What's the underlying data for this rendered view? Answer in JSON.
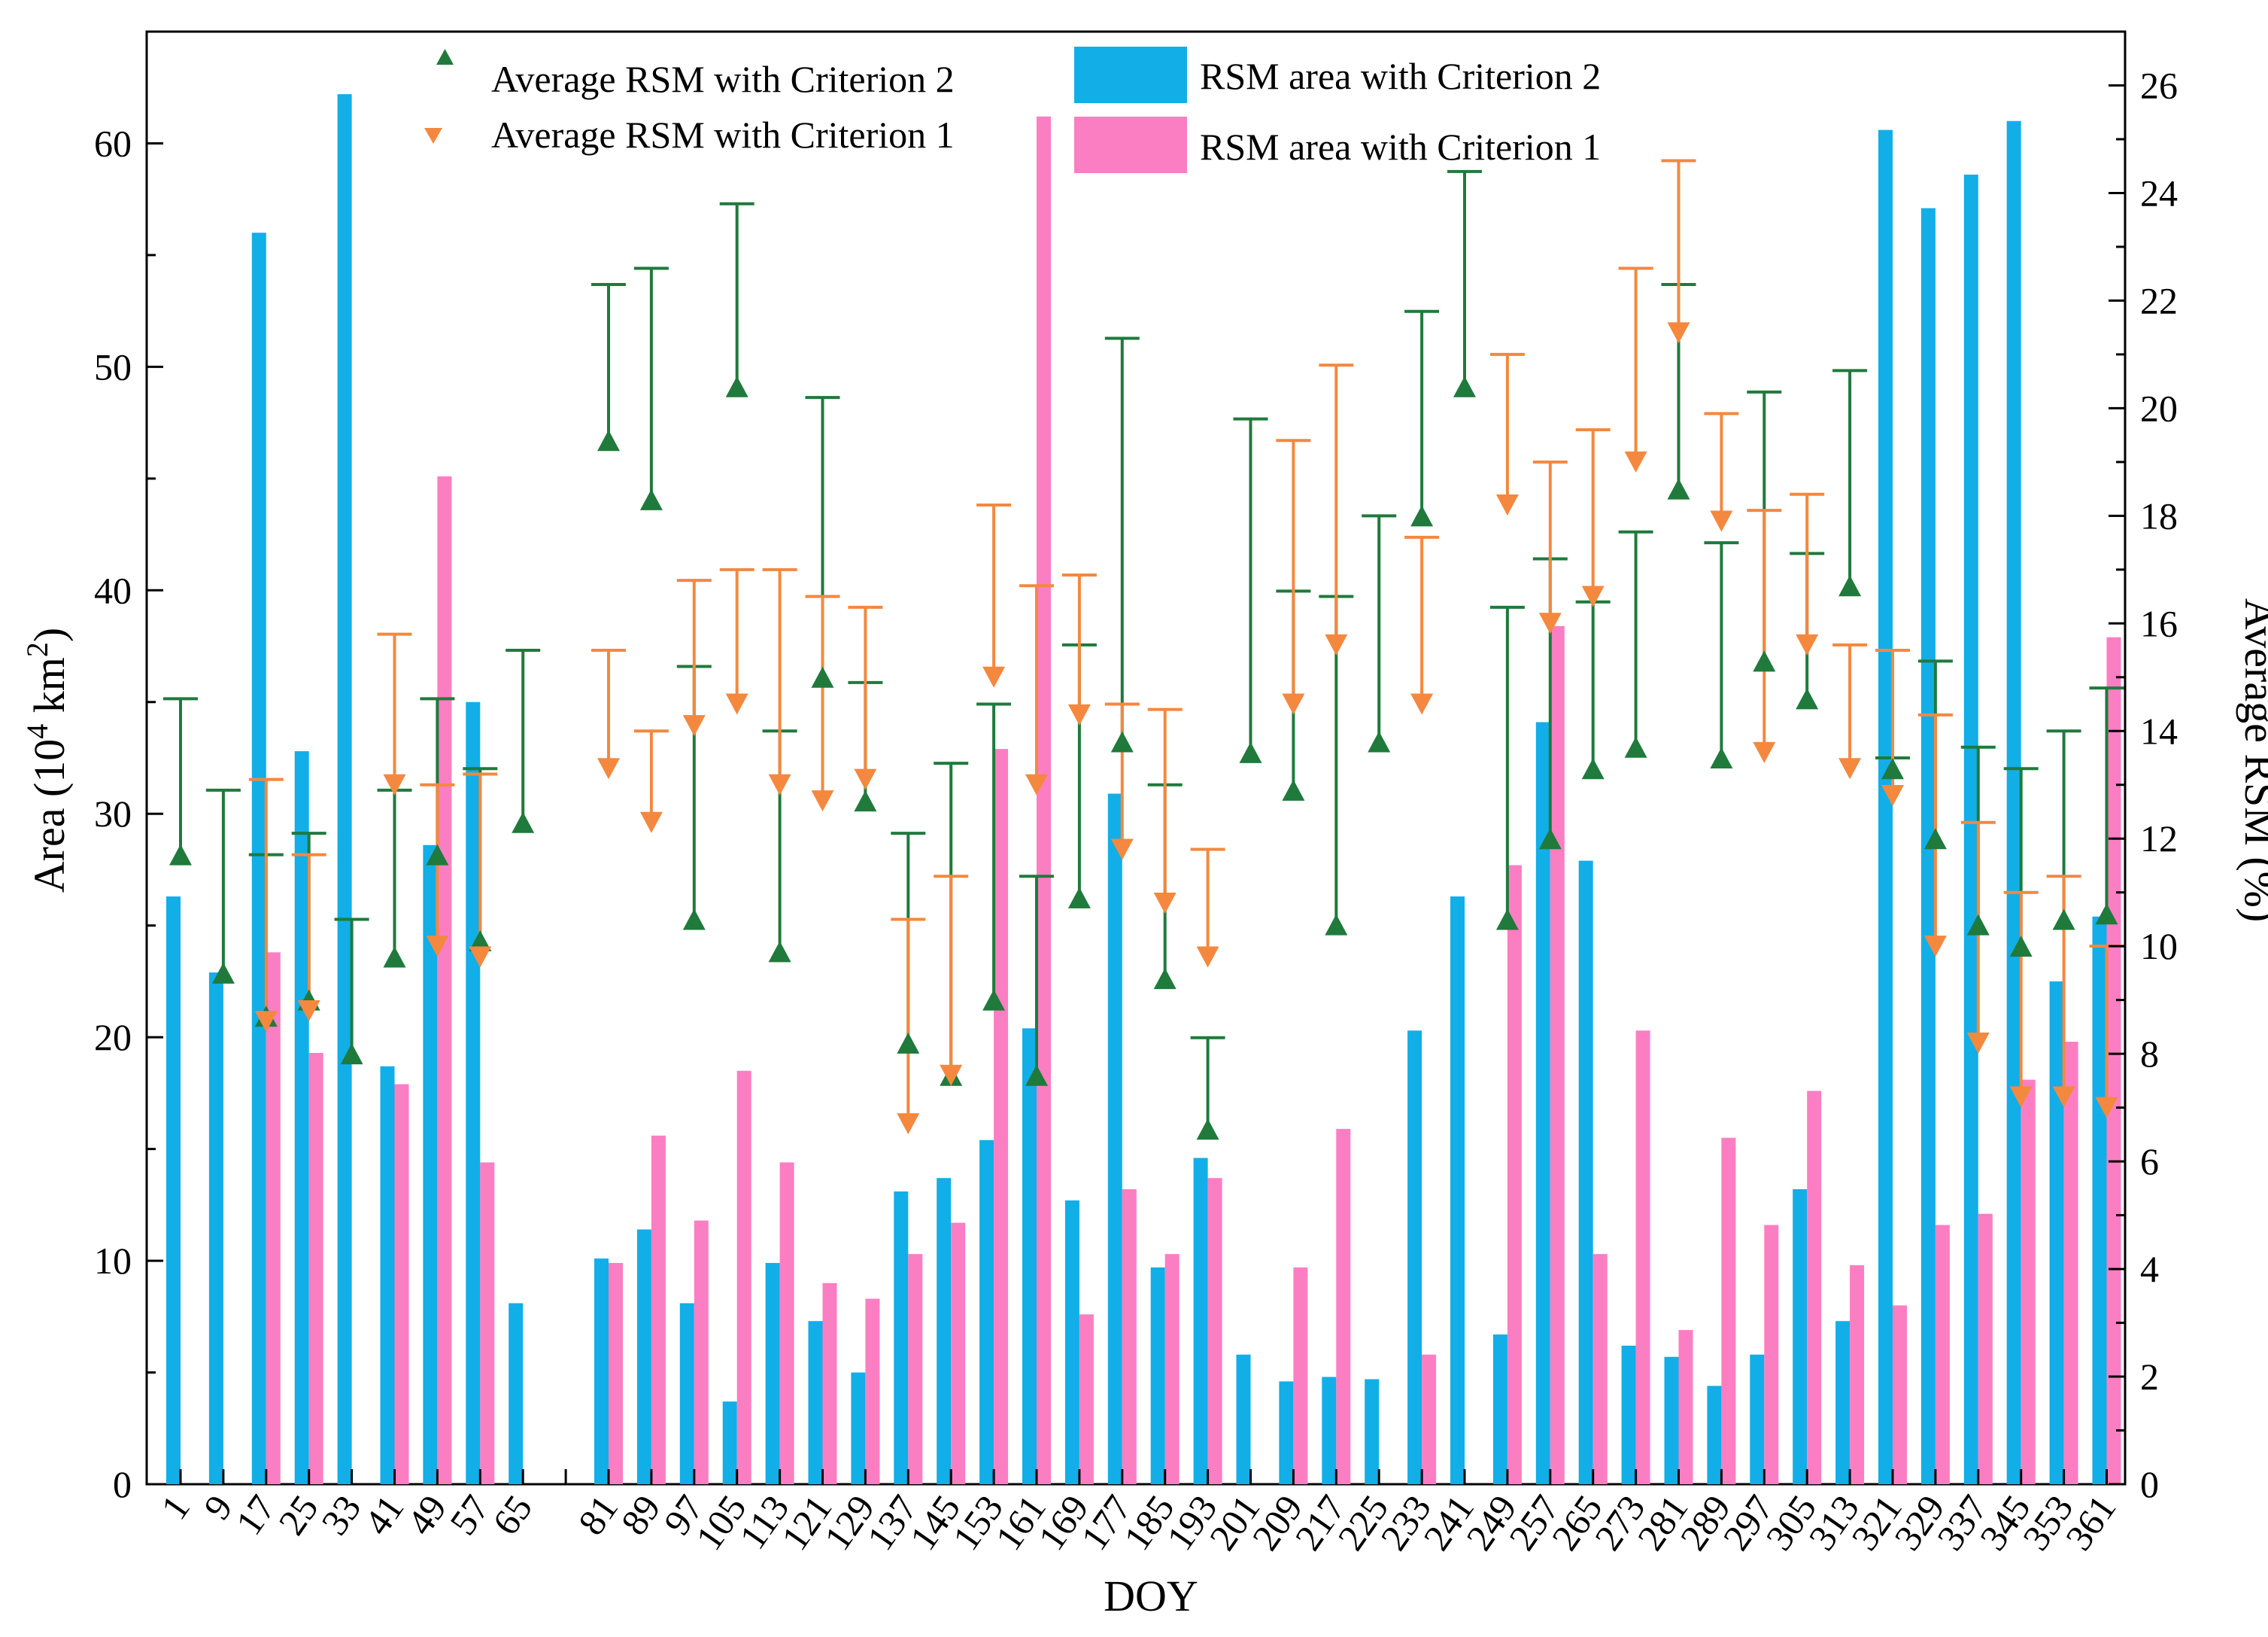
{
  "chart_data": {
    "type": "bar",
    "title": "",
    "xlabel": "DOY",
    "ylabel_left": "Area (10",
    "ylabel_left_sup": "4",
    "ylabel_left_unit": " km",
    "ylabel_left_sup2": "2",
    "ylabel_left_close": ")",
    "ylabel_right": "Average RSM (%)",
    "ylim_left": [
      0,
      65
    ],
    "ylim_right": [
      0,
      27
    ],
    "yticks_left": [
      0,
      10,
      20,
      30,
      40,
      50,
      60
    ],
    "yticks_right": [
      0,
      2,
      4,
      6,
      8,
      10,
      12,
      14,
      16,
      18,
      20,
      22,
      24,
      26
    ],
    "categories": [
      "1",
      "9",
      "17",
      "25",
      "33",
      "41",
      "49",
      "57",
      "65",
      "",
      "81",
      "89",
      "97",
      "105",
      "113",
      "121",
      "129",
      "137",
      "145",
      "153",
      "161",
      "169",
      "177",
      "185",
      "193",
      "201",
      "209",
      "217",
      "225",
      "233",
      "241",
      "249",
      "257",
      "265",
      "273",
      "281",
      "289",
      "297",
      "305",
      "313",
      "321",
      "329",
      "337",
      "345",
      "353",
      "361"
    ],
    "legend": [
      {
        "label": "Average RSM with Criterion 2",
        "kind": "triangle-up",
        "color": "#1f7a3c"
      },
      {
        "label": "Average RSM with Criterion 1",
        "kind": "triangle-down",
        "color": "#f4883f"
      },
      {
        "label": "RSM area with Criterion 2",
        "kind": "bar",
        "color": "#12aee8"
      },
      {
        "label": "RSM area with Criterion 1",
        "kind": "bar",
        "color": "#fb7ec3"
      }
    ],
    "series": [
      {
        "name": "RSM area with Criterion 2",
        "kind": "bar",
        "axis": "left",
        "color": "#12aee8",
        "values": [
          26.3,
          22.9,
          56.0,
          32.8,
          62.2,
          18.7,
          28.6,
          35.0,
          8.1,
          null,
          10.1,
          11.4,
          8.1,
          3.7,
          9.9,
          7.3,
          5.0,
          13.1,
          13.7,
          15.4,
          20.4,
          12.7,
          30.9,
          9.7,
          14.6,
          5.8,
          4.6,
          4.8,
          4.7,
          20.3,
          26.3,
          6.7,
          34.1,
          27.9,
          6.2,
          5.7,
          4.4,
          5.8,
          13.2,
          7.3,
          60.6,
          57.1,
          58.6,
          61.0,
          22.5,
          25.4
        ]
      },
      {
        "name": "RSM area with Criterion 1",
        "kind": "bar",
        "axis": "left",
        "color": "#fb7ec3",
        "values": [
          null,
          null,
          23.8,
          19.3,
          null,
          17.9,
          45.1,
          14.4,
          null,
          null,
          9.9,
          15.6,
          11.8,
          18.5,
          14.4,
          9.0,
          8.3,
          10.3,
          11.7,
          32.9,
          61.2,
          7.6,
          13.2,
          10.3,
          13.7,
          null,
          9.7,
          15.9,
          null,
          5.8,
          null,
          27.7,
          38.4,
          10.3,
          20.3,
          6.9,
          15.5,
          11.6,
          17.6,
          9.8,
          8.0,
          11.6,
          12.1,
          18.1,
          19.8,
          37.9
        ]
      },
      {
        "name": "Average RSM with Criterion 2",
        "kind": "marker",
        "axis": "right",
        "color": "#1f7a3c",
        "values": [
          11.7,
          9.5,
          8.7,
          9.0,
          8.0,
          9.8,
          11.7,
          10.1,
          12.3,
          null,
          19.4,
          18.3,
          10.5,
          20.4,
          9.9,
          15.0,
          12.7,
          8.2,
          7.6,
          9.0,
          7.6,
          10.9,
          13.8,
          9.4,
          6.6,
          13.6,
          12.9,
          10.4,
          13.8,
          18.0,
          20.4,
          10.5,
          12.0,
          13.3,
          13.7,
          18.5,
          13.5,
          15.3,
          14.6,
          16.7,
          13.3,
          12.0,
          10.4,
          10.0,
          10.5,
          10.6
        ],
        "error_upper": [
          14.6,
          12.9,
          11.7,
          12.1,
          10.5,
          12.9,
          14.6,
          13.3,
          15.5,
          null,
          22.3,
          22.6,
          15.2,
          23.8,
          14.0,
          20.2,
          14.9,
          12.1,
          13.4,
          14.5,
          11.3,
          15.6,
          21.3,
          13.0,
          8.3,
          19.8,
          16.6,
          16.5,
          18.0,
          21.8,
          24.4,
          16.3,
          17.2,
          16.4,
          17.7,
          22.3,
          17.5,
          20.3,
          17.3,
          20.7,
          13.5,
          15.3,
          13.7,
          13.3,
          14.0,
          14.8
        ]
      },
      {
        "name": "Average RSM with Criterion 1",
        "kind": "marker",
        "axis": "right",
        "color": "#f4883f",
        "values": [
          null,
          null,
          8.6,
          8.8,
          null,
          13.0,
          10.0,
          9.8,
          null,
          null,
          13.3,
          12.3,
          14.1,
          14.5,
          13.0,
          12.7,
          13.1,
          6.7,
          7.6,
          15.0,
          13.0,
          14.3,
          11.8,
          10.8,
          9.8,
          null,
          14.5,
          15.6,
          null,
          14.5,
          null,
          18.2,
          16.0,
          16.5,
          19.0,
          21.4,
          17.9,
          13.6,
          15.6,
          13.3,
          12.8,
          10.0,
          8.2,
          7.2,
          7.2,
          7.0
        ],
        "error_upper": [
          null,
          null,
          13.1,
          11.7,
          null,
          15.8,
          13.0,
          13.2,
          null,
          null,
          15.5,
          14.0,
          16.8,
          17.0,
          17.0,
          16.5,
          16.3,
          10.5,
          11.3,
          18.2,
          16.7,
          16.9,
          14.5,
          14.4,
          11.8,
          null,
          19.4,
          20.8,
          null,
          17.6,
          null,
          21.0,
          19.0,
          19.6,
          22.6,
          24.6,
          19.9,
          18.1,
          18.4,
          15.6,
          15.5,
          14.3,
          12.3,
          11.0,
          11.3,
          10.0
        ]
      }
    ]
  }
}
